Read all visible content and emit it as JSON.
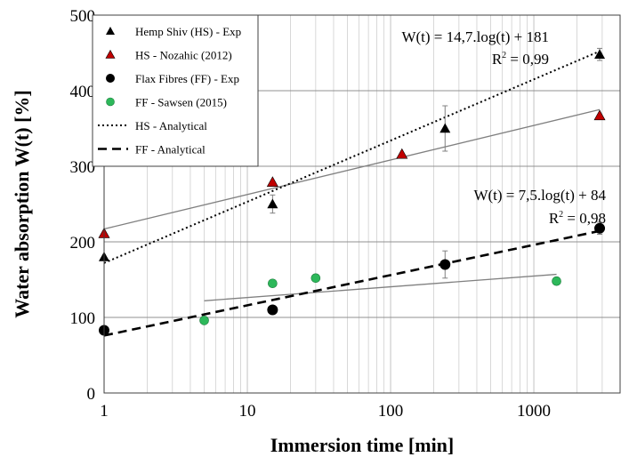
{
  "colors": {
    "hs_exp": "#000000",
    "hs_nozahic": "#c00000",
    "ff_exp": "#000000",
    "ff_sawsen": "#2db85a",
    "trend": "#808080",
    "grid": "#c8c8c8"
  },
  "chart_data": {
    "type": "scatter",
    "xscale": "log",
    "xlim": [
      1,
      4000
    ],
    "ylim": [
      0,
      500
    ],
    "grid": true,
    "legend_position": "top-left",
    "xlabel": "Immersion time [min]",
    "ylabel": "Water absorption W(t) [%]",
    "x_tick_labels": [
      "1",
      "10",
      "100",
      "1000"
    ],
    "x_tick_values": [
      1,
      10,
      100,
      1000
    ],
    "y_ticks": [
      0,
      100,
      200,
      300,
      400,
      500
    ],
    "series": [
      {
        "name": "Hemp Shiv (HS) - Exp",
        "marker": "triangle",
        "color": "#000000",
        "points": [
          {
            "x": 1,
            "y": 180
          },
          {
            "x": 15,
            "y": 250,
            "err": 12
          },
          {
            "x": 240,
            "y": 350,
            "err": 30
          },
          {
            "x": 2880,
            "y": 448,
            "err": 8
          }
        ]
      },
      {
        "name": "HS - Nozahic (2012)",
        "marker": "triangle",
        "color": "#c00000",
        "points": [
          {
            "x": 1,
            "y": 211
          },
          {
            "x": 15,
            "y": 279
          },
          {
            "x": 120,
            "y": 316
          },
          {
            "x": 2880,
            "y": 367
          }
        ]
      },
      {
        "name": "Flax Fibres (FF) - Exp",
        "marker": "circle",
        "color": "#000000",
        "points": [
          {
            "x": 1,
            "y": 83
          },
          {
            "x": 15,
            "y": 110
          },
          {
            "x": 240,
            "y": 170,
            "err": 18
          },
          {
            "x": 2880,
            "y": 218,
            "err": 8
          }
        ]
      },
      {
        "name": "FF - Sawsen (2015)",
        "marker": "circle",
        "color": "#2db85a",
        "points": [
          {
            "x": 5,
            "y": 96
          },
          {
            "x": 15,
            "y": 145
          },
          {
            "x": 30,
            "y": 152
          },
          {
            "x": 1440,
            "y": 148
          }
        ]
      },
      {
        "name": "HS - Analytical",
        "line": "dotted",
        "color": "#000000",
        "a": 81,
        "b": 172,
        "x_range": [
          1,
          2880
        ]
      },
      {
        "name": "FF - Analytical",
        "line": "dashed",
        "color": "#000000",
        "a": 40,
        "b": 76,
        "x_range": [
          1,
          2880
        ]
      }
    ],
    "trendlines": [
      {
        "x_range": [
          1,
          2880
        ],
        "y_range": [
          217,
          375
        ],
        "color": "#808080"
      },
      {
        "x_range": [
          5,
          1440
        ],
        "y_range": [
          122,
          157
        ],
        "color": "#808080"
      }
    ],
    "annotations": [
      {
        "eq": "W(t) = 14,7.log(t) + 181",
        "r2_label": "R",
        "r2_sup": "2",
        "r2_value": " = 0,99"
      },
      {
        "eq": "W(t) = 7,5.log(t) + 84",
        "r2_label": "R",
        "r2_sup": "2",
        "r2_value": " = 0,98"
      }
    ]
  }
}
